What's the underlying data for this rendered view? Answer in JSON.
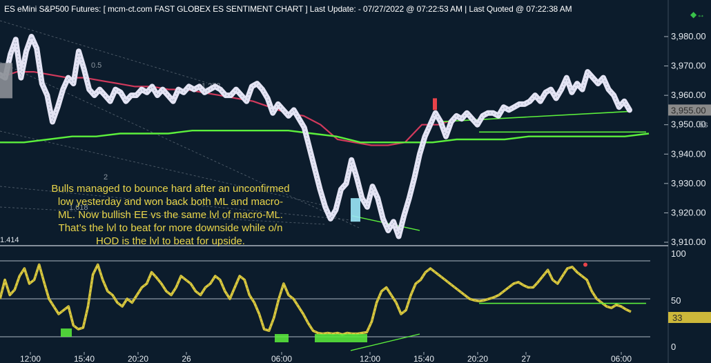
{
  "header": {
    "title": "ES eMini S&P500 Futures: [ mcm-ct.com FAST  GLOBEX ES SENTIMENT CHART ] Last Update:  - 07/27/2022 @ 07:22:53 AM | Last Quoted @ 07:22:38 AM"
  },
  "annotation": {
    "lines": [
      "Bulls managed to bounce hard after an unconfirmed",
      "low yesterday and won back both ML and macro-",
      "ML. Now bullish EE vs the same lvl of macro-ML.",
      "That’s the lvl to beat for more downside while o/n",
      "HOD is the lvl to beat for upside."
    ]
  },
  "corner_icon": "arrows-icon",
  "colors": {
    "background": "#0c1c2c",
    "price": "#e4e4f4",
    "ml_line": "#d23a5c",
    "green_line": "#5cf03c",
    "oscillator": "#d8c840",
    "last_price_box": "#8a8a8a",
    "last_osc_box": "#cdb83a"
  },
  "chart_data": [
    {
      "type": "line",
      "name": "price-panel",
      "y_ticks": [
        "3,980.00",
        "3,970.00",
        "3,960.00",
        "3,950.00",
        "3,940.00",
        "3,930.00",
        "3,920.00",
        "3,910.00"
      ],
      "ylim": [
        3908,
        3990
      ],
      "last_price_label": "3,955.00",
      "side_label": "6s",
      "fib_labels": [
        "0.5",
        "1.272",
        "2",
        "1.618",
        "1.414"
      ],
      "x_ticks": [
        "12:00",
        "15:40",
        "20:20",
        "26",
        "06:00",
        "12:00",
        "15:40",
        "20:20",
        "27",
        "06:00"
      ],
      "series": [
        {
          "values": [
            3967,
            3966,
            3974,
            3979,
            3966,
            3975,
            3980,
            3976,
            3964,
            3960,
            3951,
            3956,
            3962,
            3966,
            3964,
            3975,
            3969,
            3962,
            3960,
            3962,
            3960,
            3958,
            3962,
            3961,
            3958,
            3960,
            3960,
            3962,
            3961,
            3963,
            3960,
            3962,
            3960,
            3958,
            3962,
            3961,
            3963,
            3962,
            3963,
            3961,
            3962,
            3963,
            3962,
            3960,
            3960,
            3962,
            3960,
            3958,
            3963,
            3964,
            3962,
            3959,
            3954,
            3957,
            3955,
            3953,
            3955,
            3952,
            3949,
            3942,
            3935,
            3928,
            3922,
            3918,
            3921,
            3928,
            3930,
            3938,
            3932,
            3925,
            3922,
            3929,
            3925,
            3918,
            3914,
            3917,
            3912,
            3919,
            3925,
            3932,
            3940,
            3946,
            3950,
            3954,
            3951,
            3946,
            3951,
            3953,
            3952,
            3954,
            3952,
            3950,
            3953,
            3954,
            3954,
            3953,
            3956,
            3955,
            3956,
            3957,
            3957,
            3958,
            3960,
            3958,
            3961,
            3962,
            3959,
            3962,
            3966,
            3961,
            3964,
            3962,
            3968,
            3966,
            3964,
            3966,
            3962,
            3960,
            3956,
            3958,
            3955
          ]
        },
        {
          "name": "ML",
          "values": [
            3966,
            3968,
            3968,
            3967,
            3966,
            3966,
            3965,
            3964,
            3963,
            3963,
            3962,
            3962,
            3961,
            3960,
            3959,
            3958,
            3956,
            3954,
            3953,
            3950,
            3945,
            3944,
            3943,
            3943,
            3944,
            3950,
            3950,
            3952
          ]
        },
        {
          "name": "macro-ML",
          "values": [
            3944,
            3944,
            3945,
            3946,
            3946,
            3947,
            3947,
            3947,
            3948,
            3948,
            3948,
            3948,
            3948,
            3947,
            3946,
            3944,
            3944,
            3944,
            3944,
            3945,
            3945,
            3945,
            3946,
            3946,
            3946,
            3946,
            3946,
            3947
          ]
        }
      ]
    },
    {
      "type": "line",
      "name": "sentiment-oscillator",
      "y_ticks": [
        "100",
        "50",
        "0"
      ],
      "ylim": [
        0,
        100
      ],
      "last_value_label": "33",
      "series": [
        {
          "values": [
            50,
            75,
            55,
            62,
            80,
            90,
            70,
            75,
            95,
            72,
            50,
            40,
            30,
            35,
            40,
            15,
            10,
            12,
            40,
            82,
            95,
            75,
            60,
            55,
            45,
            40,
            50,
            45,
            55,
            65,
            70,
            85,
            78,
            70,
            60,
            55,
            65,
            80,
            75,
            70,
            60,
            55,
            65,
            70,
            80,
            75,
            60,
            50,
            65,
            80,
            75,
            55,
            45,
            30,
            10,
            8,
            25,
            50,
            70,
            55,
            50,
            40,
            30,
            18,
            8,
            5,
            4,
            5,
            4,
            5,
            3,
            5,
            4,
            4,
            5,
            6,
            20,
            45,
            60,
            65,
            55,
            45,
            30,
            35,
            55,
            70,
            75,
            85,
            90,
            85,
            80,
            75,
            70,
            65,
            60,
            55,
            50,
            48,
            47,
            48,
            50,
            52,
            55,
            60,
            65,
            70,
            72,
            68,
            65,
            65,
            72,
            80,
            88,
            75,
            70,
            80,
            90,
            92,
            85,
            80,
            75,
            60,
            50,
            45,
            40,
            38,
            42,
            40,
            36,
            33
          ]
        }
      ]
    }
  ]
}
